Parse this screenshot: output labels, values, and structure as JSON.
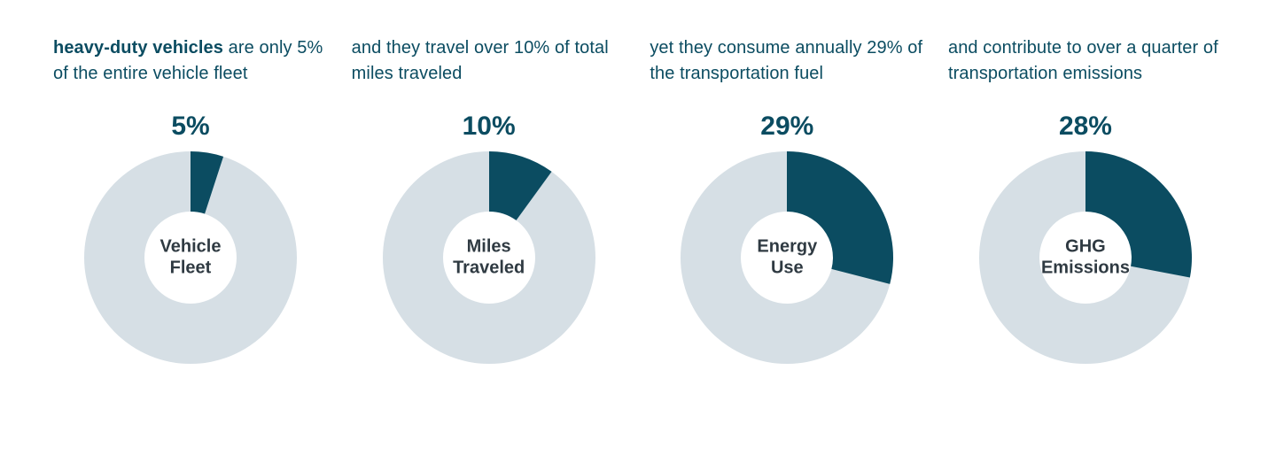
{
  "colors": {
    "background": "#ffffff",
    "accent": "#0b4c61",
    "ring_bg": "#d6dfe5",
    "caption": "#0b4c61",
    "center_label": "#2f3a42"
  },
  "donut": {
    "outer_radius": 120,
    "inner_radius": 52,
    "svg_size": 250,
    "stroke_width": 68
  },
  "typography": {
    "caption_fontsize": 20,
    "pct_fontsize": 30,
    "center_label_fontsize": 20
  },
  "panels": [
    {
      "caption_bold": "heavy-duty vehicles",
      "caption_rest": " are only 5% of the entire vehicle fleet",
      "percentage": 5,
      "percentage_label": "5%",
      "center_label": "Vehicle\nFleet"
    },
    {
      "caption_bold": "",
      "caption_rest": "and they travel over 10% of total miles traveled",
      "percentage": 10,
      "percentage_label": "10%",
      "center_label": "Miles\nTraveled"
    },
    {
      "caption_bold": "",
      "caption_rest": "yet they consume annually 29% of the transportation fuel",
      "percentage": 29,
      "percentage_label": "29%",
      "center_label": "Energy\nUse"
    },
    {
      "caption_bold": "",
      "caption_rest": "and contribute to over a quarter of transportation emissions",
      "percentage": 28,
      "percentage_label": "28%",
      "center_label": "GHG\nEmissions"
    }
  ]
}
